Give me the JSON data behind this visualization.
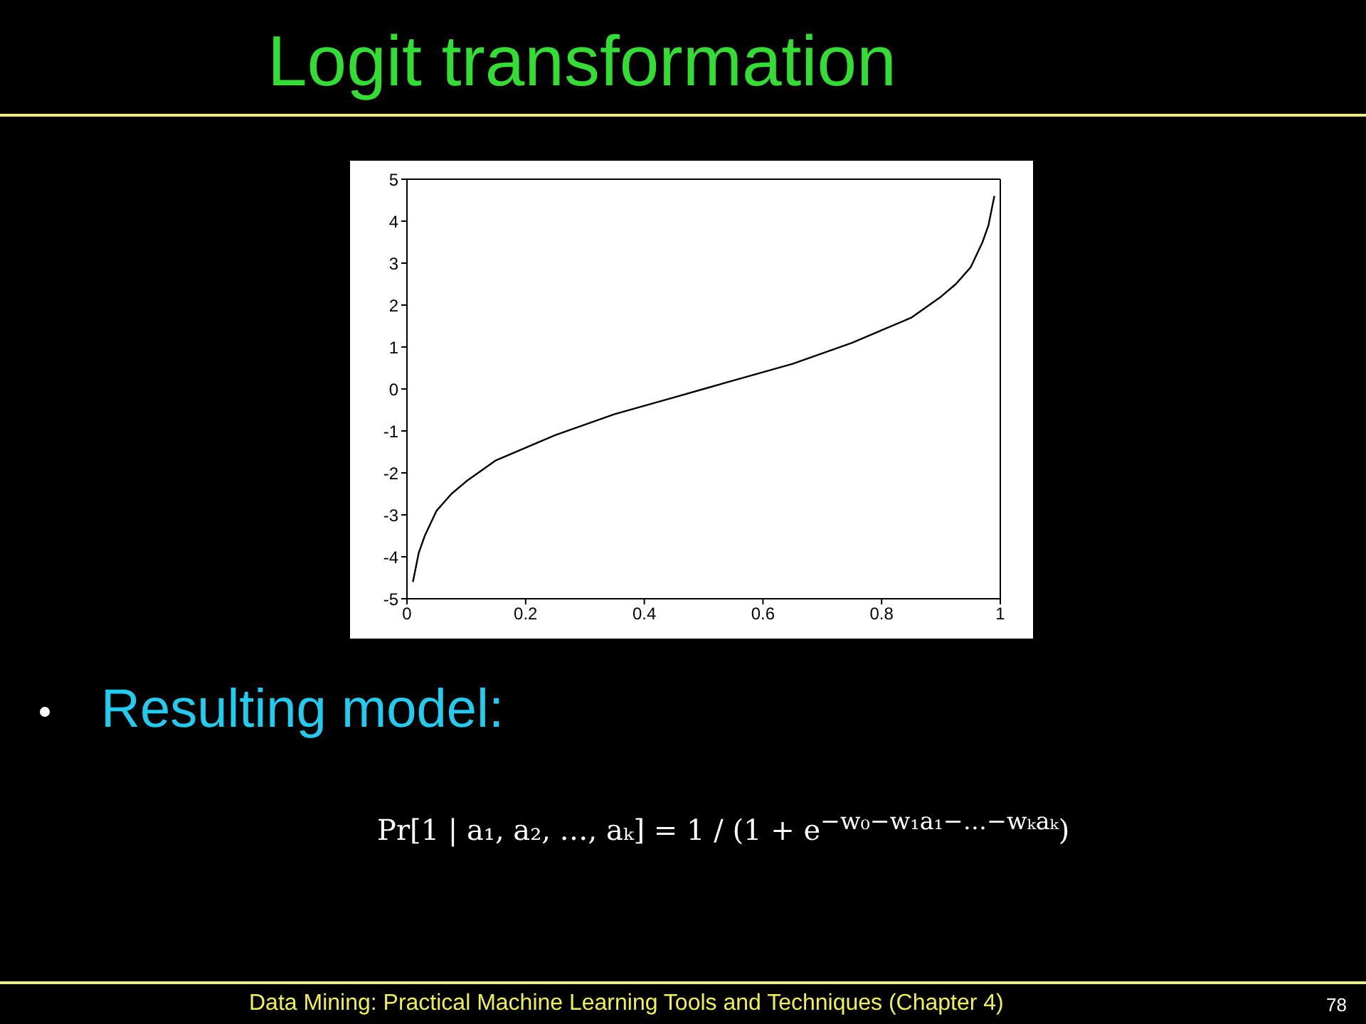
{
  "chart_data": {
    "type": "line",
    "title": "Logit transformation",
    "x": [
      0.01,
      0.02,
      0.03,
      0.05,
      0.075,
      0.1,
      0.15,
      0.2,
      0.25,
      0.3,
      0.35,
      0.4,
      0.45,
      0.5,
      0.55,
      0.6,
      0.65,
      0.7,
      0.75,
      0.8,
      0.85,
      0.9,
      0.925,
      0.95,
      0.97,
      0.98,
      0.99
    ],
    "series": [
      {
        "color": "#000000",
        "values": [
          -4.6,
          -3.9,
          -3.5,
          -2.9,
          -2.5,
          -2.2,
          -1.7,
          -1.4,
          -1.1,
          -0.85,
          -0.6,
          -0.4,
          -0.2,
          0,
          0.2,
          0.4,
          0.6,
          0.85,
          1.1,
          1.4,
          1.7,
          2.2,
          2.5,
          2.9,
          3.5,
          3.9,
          4.6
        ]
      }
    ],
    "xlim": [
      0,
      1
    ],
    "xticks": [
      0,
      0.2,
      0.4,
      0.6,
      0.8,
      1
    ],
    "ylim": [
      -5,
      5
    ],
    "yticks": [
      -5,
      -4,
      -3,
      -2,
      -1,
      0,
      1,
      2,
      3,
      4,
      5
    ],
    "grid": false,
    "legend": false,
    "annotations": [
      "Resulting model:",
      "Pr[1 | a₁, a₂, …, aₖ] = 1 / (1 + e$^{−w₀−w₁a₁−…−wₖaₖ}$)",
      "Data Mining: Practical Machine Learning Tools and Techniques (Chapter 4)",
      "78"
    ]
  }
}
